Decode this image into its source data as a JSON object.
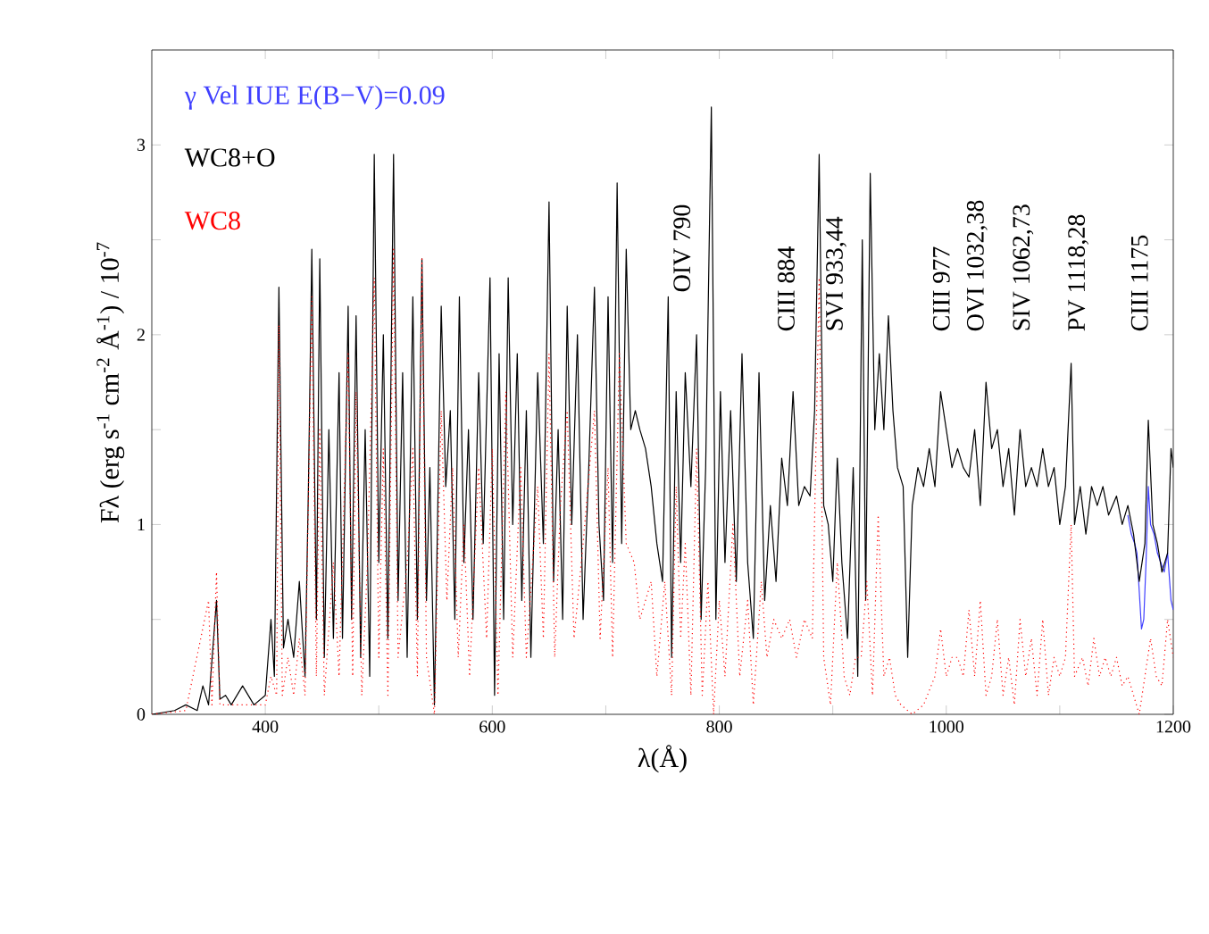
{
  "chart_data": {
    "type": "line",
    "xlabel": "λ(Å)",
    "ylabel": "Fλ (erg s$^{-1}$ cm$^{-2}$ Å$^{-1}$) / 10$^{-7}$",
    "xlim": [
      300,
      1200
    ],
    "ylim": [
      0,
      3.5
    ],
    "xticks": [
      400,
      {
        "value": 500,
        "label": null
      },
      600,
      {
        "value": 700,
        "label": null
      },
      800,
      {
        "value": 900,
        "label": null
      },
      1000,
      {
        "value": 1100,
        "label": null
      },
      1200
    ],
    "yticks": [
      0,
      {
        "value": 0.5,
        "label": null
      },
      1,
      {
        "value": 1.5,
        "label": null
      },
      2,
      {
        "value": 2.5,
        "label": null
      },
      3
    ],
    "grid": false,
    "legend": "top left",
    "marker": "none",
    "annotations": [
      "OIV 790",
      "CIII 884",
      "SVI 933,44",
      "CIII 977",
      "OVI 1032,38",
      "SIV 1062,73",
      "PV 1118,28",
      "CIII 1175"
    ],
    "series": [
      {
        "name": "γ Vel IUE E(B−V)=0.09",
        "color": "#4040ff",
        "line_style": "solid",
        "x": [
          1160,
          1163,
          1166,
          1168,
          1170,
          1172,
          1174,
          1176,
          1178,
          1180,
          1183,
          1186,
          1189,
          1192,
          1195,
          1198,
          1200
        ],
        "values": [
          1.05,
          0.95,
          0.9,
          0.85,
          0.65,
          0.45,
          0.5,
          0.8,
          1.2,
          1.0,
          0.95,
          0.85,
          0.8,
          0.75,
          0.85,
          0.6,
          0.55
        ]
      },
      {
        "name": "WC8+O",
        "color": "#000000",
        "line_style": "solid",
        "x": [
          300,
          320,
          330,
          340,
          345,
          350,
          357,
          360,
          365,
          370,
          380,
          390,
          400,
          405,
          408,
          412,
          416,
          420,
          425,
          430,
          435,
          438,
          441,
          445,
          448,
          452,
          456,
          460,
          465,
          468,
          473,
          476,
          480,
          484,
          488,
          492,
          496,
          500,
          504,
          508,
          513,
          517,
          521,
          525,
          530,
          534,
          538,
          542,
          545,
          549,
          555,
          559,
          563,
          567,
          571,
          575,
          579,
          583,
          588,
          592,
          598,
          602,
          606,
          610,
          614,
          618,
          622,
          626,
          630,
          634,
          640,
          645,
          650,
          654,
          658,
          662,
          666,
          670,
          675,
          680,
          685,
          690,
          694,
          698,
          702,
          706,
          710,
          714,
          718,
          722,
          726,
          730,
          735,
          740,
          745,
          750,
          755,
          758,
          762,
          766,
          770,
          775,
          780,
          784,
          788,
          793,
          797,
          801,
          805,
          810,
          815,
          820,
          825,
          830,
          835,
          840,
          845,
          850,
          855,
          860,
          865,
          870,
          875,
          880,
          884,
          888,
          892,
          896,
          900,
          904,
          908,
          913,
          918,
          922,
          926,
          929,
          933,
          937,
          941,
          945,
          949,
          953,
          957,
          962,
          966,
          970,
          975,
          980,
          985,
          990,
          995,
          1000,
          1005,
          1010,
          1015,
          1020,
          1025,
          1030,
          1035,
          1040,
          1045,
          1050,
          1055,
          1060,
          1065,
          1070,
          1075,
          1080,
          1085,
          1090,
          1095,
          1100,
          1105,
          1110,
          1113,
          1118,
          1123,
          1128,
          1133,
          1138,
          1143,
          1150,
          1155,
          1160,
          1165,
          1170,
          1175,
          1178,
          1182,
          1186,
          1190,
          1195,
          1198,
          1200
        ],
        "values": [
          0,
          0.02,
          0.05,
          0.02,
          0.15,
          0.05,
          0.6,
          0.08,
          0.1,
          0.05,
          0.15,
          0.05,
          0.1,
          0.5,
          0.2,
          2.25,
          0.35,
          0.5,
          0.3,
          0.7,
          0.2,
          1.2,
          2.45,
          0.5,
          2.4,
          0.3,
          1.5,
          0.4,
          1.8,
          0.4,
          2.15,
          0.5,
          2.1,
          0.3,
          1.5,
          0.2,
          2.95,
          0.8,
          2.0,
          0.4,
          2.95,
          0.6,
          1.8,
          0.3,
          2.2,
          0.5,
          2.4,
          0.6,
          1.3,
          0.05,
          2.15,
          1.2,
          1.6,
          0.5,
          2.2,
          0.8,
          1.5,
          0.5,
          1.8,
          0.9,
          2.3,
          0.1,
          1.9,
          0.5,
          2.3,
          1.0,
          1.9,
          0.6,
          1.6,
          0.3,
          1.8,
          0.9,
          2.7,
          0.7,
          1.5,
          0.5,
          2.15,
          1.0,
          2.0,
          0.5,
          1.3,
          2.25,
          1.0,
          0.6,
          2.2,
          0.8,
          2.8,
          0.9,
          2.45,
          1.5,
          1.6,
          1.5,
          1.4,
          1.2,
          0.9,
          0.7,
          2.2,
          0.3,
          1.7,
          0.8,
          1.8,
          1.2,
          2.0,
          0.5,
          1.3,
          3.2,
          0.5,
          1.7,
          0.8,
          1.6,
          0.7,
          1.9,
          0.8,
          0.4,
          1.8,
          0.6,
          1.1,
          0.7,
          1.35,
          1.1,
          1.7,
          1.1,
          1.2,
          1.15,
          1.6,
          2.95,
          1.1,
          1.0,
          0.7,
          1.35,
          0.8,
          0.4,
          1.3,
          0.2,
          2.5,
          0.6,
          2.85,
          1.5,
          1.9,
          1.5,
          2.1,
          1.6,
          1.3,
          1.2,
          0.3,
          1.1,
          1.3,
          1.2,
          1.4,
          1.2,
          1.7,
          1.5,
          1.3,
          1.4,
          1.3,
          1.25,
          1.5,
          1.1,
          1.75,
          1.4,
          1.5,
          1.2,
          1.4,
          1.05,
          1.5,
          1.2,
          1.3,
          1.2,
          1.4,
          1.2,
          1.3,
          1.0,
          1.2,
          1.85,
          1.0,
          1.2,
          0.95,
          1.2,
          1.1,
          1.2,
          1.05,
          1.15,
          1.0,
          1.1,
          0.95,
          0.7,
          0.9,
          1.55,
          1.0,
          0.9,
          0.75,
          0.85,
          1.4,
          1.3
        ]
      },
      {
        "name": "WC8",
        "color": "#ff0000",
        "line_style": "dotted",
        "x": [
          300,
          330,
          350,
          353,
          357,
          360,
          380,
          400,
          405,
          410,
          412,
          415,
          420,
          425,
          430,
          435,
          441,
          445,
          448,
          452,
          460,
          465,
          473,
          477,
          480,
          485,
          490,
          496,
          500,
          504,
          508,
          513,
          517,
          525,
          530,
          534,
          538,
          542,
          549,
          555,
          560,
          565,
          570,
          575,
          580,
          588,
          595,
          600,
          605,
          612,
          618,
          625,
          630,
          640,
          645,
          650,
          655,
          660,
          666,
          672,
          680,
          690,
          695,
          702,
          706,
          712,
          718,
          725,
          730,
          740,
          745,
          752,
          758,
          762,
          766,
          770,
          775,
          780,
          785,
          790,
          795,
          800,
          805,
          812,
          818,
          825,
          830,
          837,
          842,
          848,
          855,
          862,
          868,
          875,
          882,
          888,
          892,
          898,
          904,
          910,
          915,
          920,
          925,
          930,
          935,
          940,
          945,
          950,
          955,
          960,
          970,
          980,
          990,
          995,
          1000,
          1005,
          1010,
          1015,
          1020,
          1025,
          1030,
          1035,
          1040,
          1045,
          1050,
          1055,
          1060,
          1065,
          1070,
          1075,
          1080,
          1085,
          1090,
          1095,
          1100,
          1105,
          1110,
          1113,
          1120,
          1125,
          1130,
          1135,
          1140,
          1145,
          1150,
          1155,
          1160,
          1165,
          1170,
          1175,
          1180,
          1185,
          1190,
          1195,
          1200
        ],
        "values": [
          0,
          0.02,
          0.6,
          0.05,
          0.75,
          0.05,
          0.05,
          0.05,
          0.2,
          0.1,
          2.05,
          0.1,
          0.3,
          0.1,
          0.4,
          0.1,
          2.2,
          0.2,
          1.5,
          0.1,
          0.8,
          0.2,
          1.9,
          0.2,
          1.7,
          0.1,
          0.8,
          2.3,
          0.3,
          1.4,
          0.1,
          2.45,
          0.3,
          0.8,
          1.4,
          0.2,
          2.4,
          0.3,
          0.0,
          1.6,
          0.6,
          1.3,
          0.3,
          1.0,
          0.2,
          1.3,
          0.4,
          1.4,
          0.1,
          1.7,
          0.3,
          1.3,
          0.3,
          1.2,
          0.4,
          1.9,
          0.3,
          1.1,
          1.6,
          0.4,
          0.9,
          1.6,
          0.4,
          1.3,
          0.3,
          1.9,
          0.9,
          0.8,
          0.5,
          0.7,
          0.2,
          0.7,
          0.1,
          1.2,
          0.4,
          0.9,
          0.1,
          1.4,
          0.1,
          0.7,
          0.0,
          0.6,
          0.2,
          1.0,
          0.2,
          0.6,
          0.05,
          0.7,
          0.3,
          0.5,
          0.4,
          0.5,
          0.3,
          0.5,
          0.4,
          2.3,
          0.3,
          0.05,
          0.8,
          0.2,
          0.1,
          0.3,
          0.3,
          0.7,
          0.1,
          1.05,
          0.2,
          0.3,
          0.1,
          0.05,
          0.0,
          0.05,
          0.2,
          0.45,
          0.2,
          0.3,
          0.3,
          0.2,
          0.55,
          0.2,
          0.6,
          0.1,
          0.2,
          0.5,
          0.1,
          0.3,
          0.05,
          0.5,
          0.2,
          0.4,
          0.1,
          0.5,
          0.1,
          0.3,
          0.2,
          0.3,
          1.0,
          0.2,
          0.3,
          0.15,
          0.4,
          0.2,
          0.3,
          0.2,
          0.3,
          0.15,
          0.2,
          0.1,
          0.0,
          0.2,
          0.4,
          0.2,
          0.15,
          0.5,
          0.3
        ]
      }
    ]
  }
}
